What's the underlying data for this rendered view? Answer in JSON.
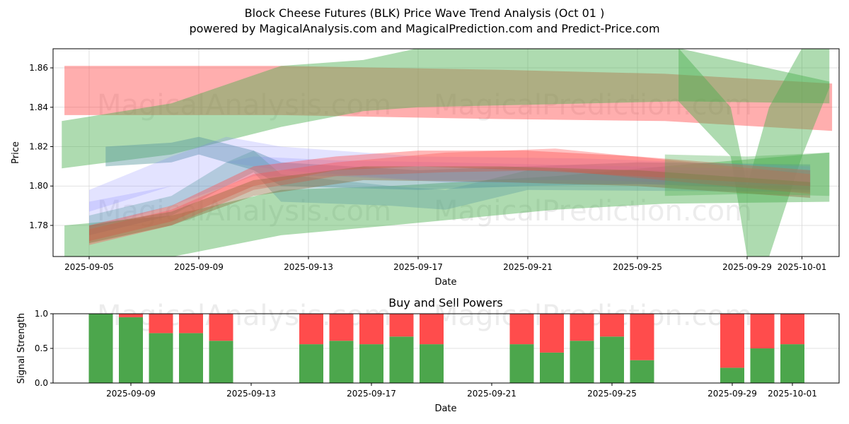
{
  "header": {
    "title": "Block Cheese Futures (BLK) Price Wave Trend Analysis (Oct 01 )",
    "subtitle": "powered by MagicalAnalysis.com and MagicalPrediction.com and Predict-Price.com"
  },
  "watermarks": [
    "MagicalAnalysis.com",
    "MagicalPrediction.com"
  ],
  "colors": {
    "green_band": "#4caf50",
    "red_band": "#ff4c4c",
    "blue_band": "#8080ff",
    "teal_band": "#5a9aa0",
    "buy": "#4ca64c",
    "sell": "#ff4c4c",
    "grid": "#d8d8d8",
    "watermark": "#c8c8c8"
  },
  "chart_data": [
    {
      "type": "area",
      "title": "",
      "xlabel": "Date",
      "ylabel": "Price",
      "xlim": [
        "2025-09-03.7",
        "2025-10-02.4"
      ],
      "ylim": [
        1.7642,
        1.8697
      ],
      "x_ticks": [
        "2025-09-05",
        "2025-09-09",
        "2025-09-13",
        "2025-09-17",
        "2025-09-21",
        "2025-09-25",
        "2025-09-29",
        "2025-10-01"
      ],
      "y_ticks": [
        "1.78",
        "1.80",
        "1.82",
        "1.84",
        "1.86"
      ],
      "grid": true,
      "series": [
        {
          "name": "red-top-band",
          "color": "red",
          "alpha": 0.45,
          "points": [
            [
              "2025-09-04.1",
              1.836,
              1.861
            ],
            [
              "2025-09-12",
              1.836,
              1.861
            ],
            [
              "2025-09-20",
              1.834,
              1.859
            ],
            [
              "2025-09-26",
              1.833,
              1.857
            ],
            [
              "2025-10-02.1",
              1.828,
              1.852
            ]
          ]
        },
        {
          "name": "green-top-band",
          "color": "green",
          "alpha": 0.45,
          "points": [
            [
              "2025-09-04",
              1.809,
              1.833
            ],
            [
              "2025-09-08",
              1.816,
              1.842
            ],
            [
              "2025-09-12",
              1.83,
              1.861
            ],
            [
              "2025-09-15",
              1.838,
              1.864
            ],
            [
              "2025-09-17",
              1.84,
              1.87
            ],
            [
              "2025-09-26.5",
              1.843,
              1.87
            ],
            [
              "2025-10-02",
              1.842,
              1.853
            ]
          ]
        },
        {
          "name": "green-wave-band",
          "color": "green",
          "alpha": 0.45,
          "points": [
            [
              "2025-09-26.5",
              1.843,
              1.87
            ],
            [
              "2025-09-28.4",
              1.815,
              1.84
            ],
            [
              "2025-09-29",
              1.764,
              1.8
            ],
            [
              "2025-09-29.8",
              1.764,
              1.84
            ],
            [
              "2025-10-01",
              1.815,
              1.87
            ],
            [
              "2025-10-02",
              1.85,
              1.87
            ]
          ]
        },
        {
          "name": "green-bottom-band",
          "color": "green",
          "alpha": 0.45,
          "points": [
            [
              "2025-09-04.1",
              1.764,
              1.78
            ],
            [
              "2025-09-08",
              1.764,
              1.785
            ],
            [
              "2025-09-12",
              1.775,
              1.798
            ],
            [
              "2025-09-16",
              1.78,
              1.8
            ],
            [
              "2025-09-22",
              1.788,
              1.805
            ],
            [
              "2025-09-26",
              1.791,
              1.81
            ],
            [
              "2025-10-02",
              1.792,
              1.817
            ]
          ]
        },
        {
          "name": "teal-upper-band",
          "color": "teal",
          "alpha": 0.45,
          "points": [
            [
              "2025-09-05.6",
              1.81,
              1.82
            ],
            [
              "2025-09-08",
              1.812,
              1.822
            ],
            [
              "2025-09-09",
              1.816,
              1.825
            ],
            [
              "2025-09-11",
              1.808,
              1.818
            ],
            [
              "2025-09-12",
              1.8,
              1.812
            ],
            [
              "2025-09-17",
              1.798,
              1.808
            ],
            [
              "2025-09-21",
              1.8,
              1.81
            ],
            [
              "2025-09-25",
              1.801,
              1.812
            ],
            [
              "2025-10-01.3",
              1.798,
              1.811
            ]
          ]
        },
        {
          "name": "blue-wide-band",
          "color": "blue",
          "alpha": 0.22,
          "points": [
            [
              "2025-09-05",
              1.787,
              1.798
            ],
            [
              "2025-09-08",
              1.8,
              1.815
            ],
            [
              "2025-09-10",
              1.812,
              1.825
            ],
            [
              "2025-09-12",
              1.808,
              1.82
            ],
            [
              "2025-09-17",
              1.803,
              1.815
            ],
            [
              "2025-09-23",
              1.803,
              1.814
            ],
            [
              "2025-10-01.3",
              1.8,
              1.81
            ]
          ]
        },
        {
          "name": "blue-mid-band",
          "color": "blue",
          "alpha": 0.22,
          "points": [
            [
              "2025-09-05",
              1.778,
              1.792
            ],
            [
              "2025-09-08",
              1.79,
              1.8
            ],
            [
              "2025-09-10",
              1.8,
              1.812
            ],
            [
              "2025-09-11",
              1.805,
              1.815
            ],
            [
              "2025-09-14",
              1.805,
              1.813
            ],
            [
              "2025-09-18",
              1.802,
              1.812
            ],
            [
              "2025-10-01.3",
              1.8,
              1.808
            ]
          ]
        },
        {
          "name": "teal-mid-band",
          "color": "teal",
          "alpha": 0.35,
          "points": [
            [
              "2025-09-05",
              1.775,
              1.785
            ],
            [
              "2025-09-08",
              1.785,
              1.795
            ],
            [
              "2025-09-10",
              1.8,
              1.812
            ],
            [
              "2025-09-11",
              1.807,
              1.818
            ],
            [
              "2025-09-12",
              1.792,
              1.806
            ],
            [
              "2025-09-16",
              1.79,
              1.8
            ],
            [
              "2025-09-18",
              1.788,
              1.798
            ],
            [
              "2025-09-21",
              1.798,
              1.808
            ],
            [
              "2025-10-01.3",
              1.797,
              1.808
            ]
          ]
        },
        {
          "name": "red-rising-band",
          "color": "red",
          "alpha": 0.4,
          "points": [
            [
              "2025-09-05",
              1.772,
              1.78
            ],
            [
              "2025-09-08",
              1.782,
              1.79
            ],
            [
              "2025-09-11",
              1.8,
              1.81
            ],
            [
              "2025-09-14",
              1.808,
              1.815
            ],
            [
              "2025-09-17",
              1.81,
              1.818
            ],
            [
              "2025-09-21",
              1.808,
              1.818
            ],
            [
              "2025-09-25",
              1.805,
              1.815
            ],
            [
              "2025-10-01.3",
              1.8,
              1.808
            ]
          ]
        },
        {
          "name": "red-rising-band-2",
          "color": "red",
          "alpha": 0.35,
          "points": [
            [
              "2025-09-05",
              1.77,
              1.778
            ],
            [
              "2025-09-08",
              1.78,
              1.788
            ],
            [
              "2025-09-11",
              1.798,
              1.806
            ],
            [
              "2025-09-14",
              1.805,
              1.812
            ],
            [
              "2025-09-18",
              1.807,
              1.817
            ],
            [
              "2025-09-22",
              1.808,
              1.819
            ],
            [
              "2025-10-01.3",
              1.796,
              1.806
            ]
          ]
        },
        {
          "name": "brown-rising-band",
          "color": "brown",
          "alpha": 0.4,
          "points": [
            [
              "2025-09-05",
              1.771,
              1.78
            ],
            [
              "2025-09-08",
              1.78,
              1.787
            ],
            [
              "2025-09-11",
              1.795,
              1.803
            ],
            [
              "2025-09-15",
              1.803,
              1.81
            ],
            [
              "2025-09-20",
              1.802,
              1.81
            ],
            [
              "2025-09-25",
              1.8,
              1.808
            ],
            [
              "2025-10-01.3",
              1.794,
              1.802
            ]
          ]
        },
        {
          "name": "green-inner-band",
          "color": "green",
          "alpha": 0.35,
          "points": [
            [
              "2025-09-26",
              1.795,
              1.816
            ],
            [
              "2025-09-29",
              1.796,
              1.815
            ],
            [
              "2025-10-02",
              1.795,
              1.817
            ]
          ]
        }
      ]
    },
    {
      "type": "bar",
      "title": "Buy and Sell Powers",
      "xlabel": "Date",
      "ylabel": "Signal Strength",
      "ylim": [
        0.0,
        1.0
      ],
      "x_ticks": [
        "2025-09-09",
        "2025-09-13",
        "2025-09-17",
        "2025-09-21",
        "2025-09-25",
        "2025-09-29",
        "2025-10-01"
      ],
      "y_ticks": [
        "0.0",
        "0.5",
        "1.0"
      ],
      "grid": true,
      "categories": [
        "2025-09-08",
        "2025-09-09",
        "2025-09-10",
        "2025-09-11",
        "2025-09-12",
        "2025-09-15",
        "2025-09-16",
        "2025-09-17",
        "2025-09-18",
        "2025-09-19",
        "2025-09-22",
        "2025-09-23",
        "2025-09-24",
        "2025-09-25",
        "2025-09-26",
        "2025-09-29",
        "2025-09-30",
        "2025-10-01"
      ],
      "series": [
        {
          "name": "Buy",
          "values": [
            1.0,
            0.95,
            0.72,
            0.72,
            0.61,
            0.56,
            0.61,
            0.56,
            0.67,
            0.56,
            0.56,
            0.44,
            0.61,
            0.67,
            0.33,
            0.22,
            0.5,
            0.56
          ]
        },
        {
          "name": "Sell",
          "values": [
            0.0,
            0.05,
            0.28,
            0.28,
            0.39,
            0.44,
            0.39,
            0.44,
            0.33,
            0.44,
            0.44,
            0.56,
            0.39,
            0.33,
            0.67,
            0.78,
            0.5,
            0.44
          ]
        }
      ]
    }
  ]
}
